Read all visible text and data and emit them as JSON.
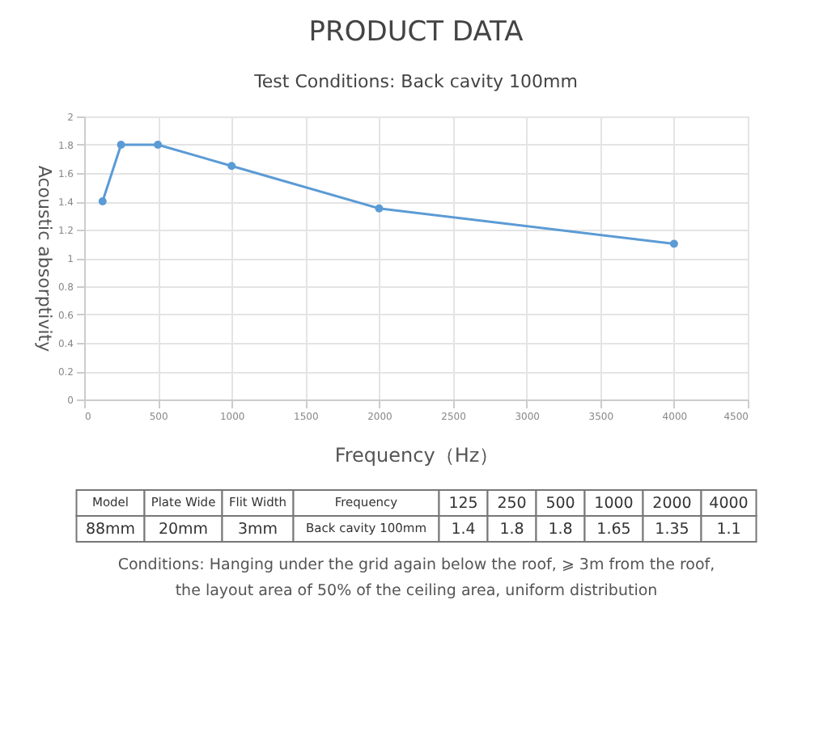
{
  "chart_data": [
    {
      "type": "line",
      "title": "PRODUCT DATA",
      "subtitle": "Test Conditions: Back cavity 100mm",
      "xlabel": "Frequency（Hz）",
      "ylabel": "Acoustic absorptivity",
      "x": [
        125,
        250,
        500,
        1000,
        2000,
        4000
      ],
      "values": [
        1.4,
        1.8,
        1.8,
        1.65,
        1.35,
        1.1
      ],
      "color": "#5b9bd5",
      "marker": "circle",
      "grid": true,
      "xlim": [
        0,
        4500
      ],
      "xticks": [
        0,
        500,
        1000,
        1500,
        2000,
        2500,
        3000,
        3500,
        4000,
        4500
      ],
      "ylim": [
        0,
        2
      ],
      "yticks": [
        0,
        0.2,
        0.4,
        0.6,
        0.8,
        1,
        1.2,
        1.4,
        1.6,
        1.8,
        2
      ]
    },
    {
      "type": "other",
      "annotations": [
        "Model",
        "Plate Wide",
        "Flit Width",
        "Frequency",
        "125",
        "250",
        "500",
        "1000",
        "2000",
        "4000",
        "88mm",
        "20mm",
        "3mm",
        "Back cavity 100mm",
        "1.4",
        "1.8",
        "1.8",
        "1.65",
        "1.35",
        "1.1",
        "Conditions: Hanging under the grid again below the roof, ⩾ 3m from the roof,",
        "the layout area of 50% of the ceiling area, uniform distribution"
      ]
    }
  ]
}
